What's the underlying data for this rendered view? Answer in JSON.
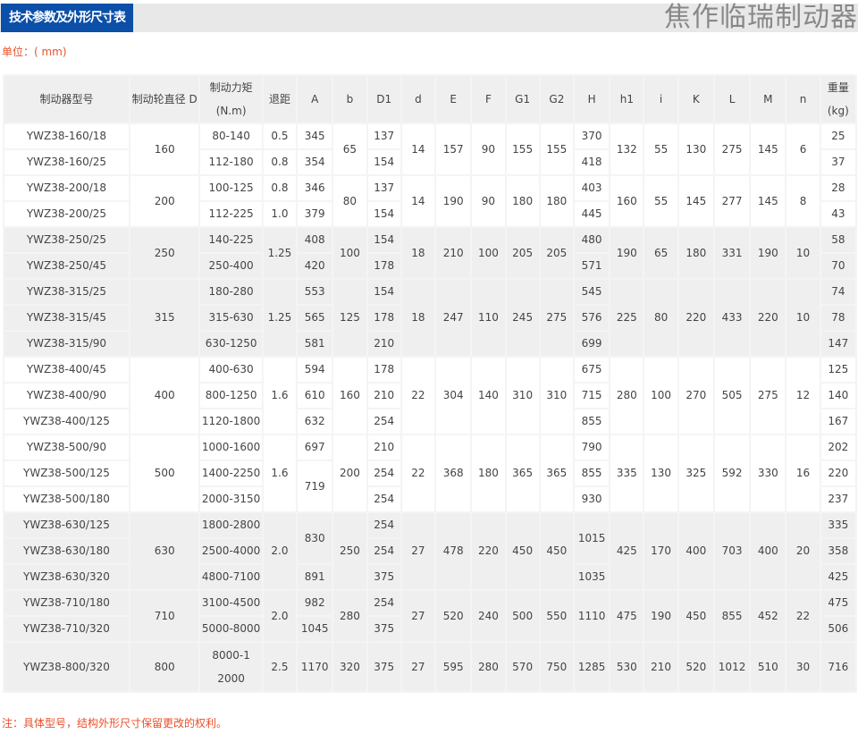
{
  "header": {
    "title": "技术参数及外形尺寸表",
    "brand": "焦作临瑞制动器"
  },
  "unit": "单位：( mm)",
  "table": {
    "headers": [
      "制动器型号",
      "制动轮直径 D",
      "制动力矩 (N.m)",
      "退距",
      "A",
      "b",
      "D1",
      "d",
      "E",
      "F",
      "G1",
      "G2",
      "H",
      "h1",
      "i",
      "K",
      "L",
      "M",
      "n",
      "重量(kg)"
    ],
    "groups": [
      {
        "bg": "w",
        "rows": 2,
        "cols": [
          [
            "YWZ38-160/18",
            "YWZ38-160/25"
          ],
          "160",
          [
            "80-140",
            "112-180"
          ],
          [
            "0.5",
            "0.8"
          ],
          [
            "345",
            "354"
          ],
          "65",
          [
            "137",
            "154"
          ],
          "14",
          "157",
          "90",
          "155",
          "155",
          [
            "370",
            "418"
          ],
          "132",
          "55",
          "130",
          "275",
          "145",
          "6",
          [
            "25",
            "37"
          ]
        ]
      },
      {
        "bg": "w",
        "rows": 2,
        "cols": [
          [
            "YWZ38-200/18",
            "YWZ38-200/25"
          ],
          "200",
          [
            "100-125",
            "112-225"
          ],
          [
            "0.8",
            "1.0"
          ],
          [
            "346",
            "379"
          ],
          "80",
          [
            "137",
            "154"
          ],
          "14",
          "190",
          "90",
          "180",
          "180",
          [
            "403",
            "445"
          ],
          "160",
          "55",
          "145",
          "277",
          "145",
          "8",
          [
            "28",
            "43"
          ]
        ]
      },
      {
        "bg": "g",
        "rows": 2,
        "cols": [
          [
            "YWZ38-250/25",
            "YWZ38-250/45"
          ],
          "250",
          [
            "140-225",
            "250-400"
          ],
          "1.25",
          [
            "408",
            "420"
          ],
          "100",
          [
            "154",
            "178"
          ],
          "18",
          "210",
          "100",
          "205",
          "205",
          [
            "480",
            "571"
          ],
          "190",
          "65",
          "180",
          "331",
          "190",
          "10",
          [
            "58",
            "70"
          ]
        ]
      },
      {
        "bg": "g",
        "rows": 3,
        "cols": [
          [
            "YWZ38-315/25",
            "YWZ38-315/45",
            "YWZ38-315/90"
          ],
          "315",
          [
            "180-280",
            "315-630",
            "630-1250"
          ],
          "1.25",
          [
            "553",
            "565",
            "581"
          ],
          "125",
          [
            "154",
            "178",
            "210"
          ],
          "18",
          "247",
          "110",
          "245",
          "275",
          [
            "545",
            "576",
            "699"
          ],
          "225",
          "80",
          "220",
          "433",
          "220",
          "10",
          [
            "74",
            "78",
            "147"
          ]
        ]
      },
      {
        "bg": "w",
        "rows": 3,
        "cols": [
          [
            "YWZ38-400/45",
            "YWZ38-400/90",
            "YWZ38-400/125"
          ],
          "400",
          [
            "400-630",
            "800-1250",
            "1120-1800"
          ],
          "1.6",
          [
            "594",
            "610",
            "632"
          ],
          "160",
          [
            "178",
            "210",
            "254"
          ],
          "22",
          "304",
          "140",
          "310",
          "310",
          [
            "675",
            "715",
            "855"
          ],
          "280",
          "100",
          "270",
          "505",
          "275",
          "12",
          [
            "125",
            "140",
            "167"
          ]
        ]
      },
      {
        "bg": "w",
        "rows": 3,
        "cols": [
          [
            "YWZ38-500/90",
            "YWZ38-500/125",
            "YWZ38-500/180"
          ],
          "500",
          [
            "1000-1600",
            "1400-2250",
            "2000-3150"
          ],
          "1.6",
          [
            "697",
            [
              "719",
              2
            ]
          ],
          "200",
          [
            "210",
            "254",
            "254"
          ],
          "22",
          "368",
          "180",
          "365",
          "365",
          [
            "790",
            "855",
            "930"
          ],
          "335",
          "130",
          "325",
          "592",
          "330",
          "16",
          [
            "202",
            "220",
            "237"
          ]
        ]
      },
      {
        "bg": "g",
        "rows": 3,
        "cols": [
          [
            "YWZ38-630/125",
            "YWZ38-630/180",
            "YWZ38-630/320"
          ],
          "630",
          [
            "1800-2800",
            "2500-4000",
            "4800-7100"
          ],
          "2.0",
          [
            [
              "830",
              2
            ],
            "891"
          ],
          "250",
          [
            "254",
            "254",
            "375"
          ],
          "27",
          "478",
          "220",
          "450",
          "450",
          [
            [
              "1015",
              2
            ],
            "1035"
          ],
          "425",
          "170",
          "400",
          "703",
          "400",
          "20",
          [
            "335",
            "358",
            "425"
          ]
        ]
      },
      {
        "bg": "g",
        "rows": 2,
        "cols": [
          [
            "YWZ38-710/180",
            "YWZ38-710/320"
          ],
          "710",
          [
            "3100-4500",
            "5000-8000"
          ],
          "2.0",
          [
            "982",
            "1045"
          ],
          "280",
          [
            "254",
            "375"
          ],
          "27",
          "520",
          "240",
          "500",
          "550",
          "1110",
          "475",
          "190",
          "450",
          "855",
          "452",
          "22",
          [
            "475",
            "506"
          ]
        ]
      },
      {
        "bg": "g",
        "rows": 1,
        "cols": [
          "YWZ38-800/320",
          "800",
          "8000-12000",
          "2.5",
          "1170",
          "320",
          "375",
          "27",
          "595",
          "280",
          "570",
          "750",
          "1285",
          "530",
          "210",
          "520",
          "1012",
          "510",
          "30",
          "716"
        ]
      }
    ]
  },
  "note": "注：具体型号，结构外形尺寸保留更改的权利。"
}
